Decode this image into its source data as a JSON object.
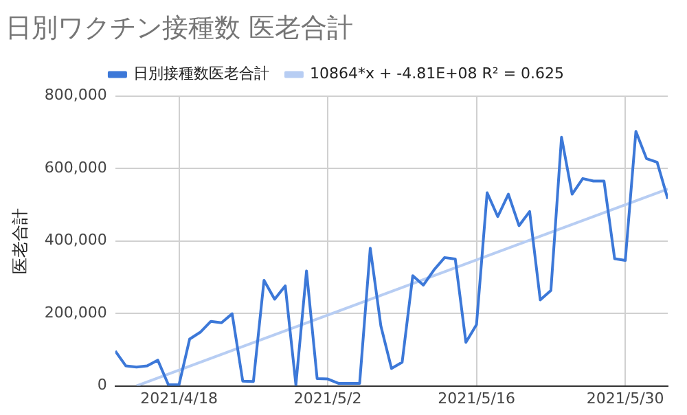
{
  "chart_data": {
    "type": "line",
    "title": "日別ワクチン接種数 医老合計",
    "ylabel": "医老合計",
    "x": [
      "2021-04-12",
      "2021-04-13",
      "2021-04-14",
      "2021-04-15",
      "2021-04-16",
      "2021-04-17",
      "2021-04-18",
      "2021-04-19",
      "2021-04-20",
      "2021-04-21",
      "2021-04-22",
      "2021-04-23",
      "2021-04-24",
      "2021-04-25",
      "2021-04-26",
      "2021-04-27",
      "2021-04-28",
      "2021-04-29",
      "2021-04-30",
      "2021-05-01",
      "2021-05-02",
      "2021-05-03",
      "2021-05-04",
      "2021-05-05",
      "2021-05-06",
      "2021-05-07",
      "2021-05-08",
      "2021-05-09",
      "2021-05-10",
      "2021-05-11",
      "2021-05-12",
      "2021-05-13",
      "2021-05-14",
      "2021-05-15",
      "2021-05-16",
      "2021-05-17",
      "2021-05-18",
      "2021-05-19",
      "2021-05-20",
      "2021-05-21",
      "2021-05-22",
      "2021-05-23",
      "2021-05-24",
      "2021-05-25",
      "2021-05-26",
      "2021-05-27",
      "2021-05-28",
      "2021-05-29",
      "2021-05-30",
      "2021-05-31",
      "2021-06-01",
      "2021-06-02",
      "2021-06-03"
    ],
    "series": [
      {
        "name": "日別接種数医老合計",
        "color": "#3c78d8",
        "values": [
          96000,
          55000,
          52000,
          55000,
          71000,
          3000,
          3000,
          129000,
          148000,
          178000,
          174000,
          199000,
          13000,
          12000,
          291000,
          239000,
          276000,
          3000,
          317000,
          20000,
          19000,
          7000,
          7000,
          7000,
          380000,
          165000,
          48000,
          65000,
          304000,
          278000,
          320000,
          354000,
          350000,
          120000,
          169000,
          533000,
          467000,
          529000,
          442000,
          481000,
          237000,
          263000,
          686000,
          529000,
          572000,
          565000,
          565000,
          351000,
          346000,
          702000,
          627000,
          617000,
          516000
        ]
      },
      {
        "name": "10864*x + -4.81E+08 R² = 0.625",
        "color": "#b7cdf3",
        "x": [
          "2021-04-14",
          "2021-06-03"
        ],
        "values": [
          0,
          543000
        ]
      }
    ],
    "xlim": [
      "2021-04-12",
      "2021-06-03"
    ],
    "xticks": [
      {
        "value": "2021-04-18",
        "label": "2021/4/18"
      },
      {
        "value": "2021-05-02",
        "label": "2021/5/2"
      },
      {
        "value": "2021-05-16",
        "label": "2021/5/16"
      },
      {
        "value": "2021-05-30",
        "label": "2021/5/30"
      }
    ],
    "ylim": [
      0,
      800000
    ],
    "yticks": [
      {
        "value": 0,
        "label": "0"
      },
      {
        "value": 200000,
        "label": "200,000"
      },
      {
        "value": 400000,
        "label": "400,000"
      },
      {
        "value": 600000,
        "label": "600,000"
      },
      {
        "value": 800000,
        "label": "800,000"
      }
    ],
    "grid": true,
    "legend": "top",
    "marker": "none",
    "line_style": "solid"
  }
}
